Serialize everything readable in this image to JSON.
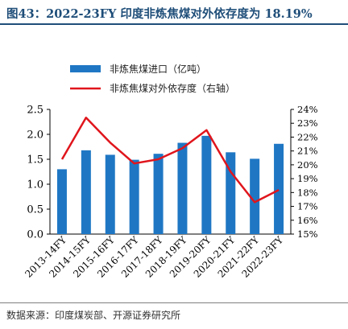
{
  "title": "图43：2022-23FY 印度非炼焦煤对外依存度为 18.19%",
  "source": "数据来源：印度煤炭部、开源证券研究所",
  "chart_data": {
    "type": "bar+line",
    "categories": [
      "2013-14FY",
      "2014-15FY",
      "2015-16FY",
      "2016-17FY",
      "2017-18FY",
      "2018-19FY",
      "2019-20FY",
      "2020-21FY",
      "2021-22FY",
      "2022-23FY"
    ],
    "series": [
      {
        "name": "非炼焦煤进口（亿吨）",
        "type": "bar",
        "axis": "left",
        "color": "#1f77c4",
        "values": [
          1.3,
          1.68,
          1.59,
          1.49,
          1.61,
          1.83,
          1.97,
          1.64,
          1.51,
          1.81
        ]
      },
      {
        "name": "非炼焦煤对外依存度（右轴）",
        "type": "line",
        "axis": "right",
        "color": "#e0151c",
        "values": [
          20.4,
          23.4,
          21.6,
          20.1,
          20.4,
          21.2,
          22.5,
          19.5,
          17.3,
          18.19
        ]
      }
    ],
    "y_left": {
      "min": 0,
      "max": 2.5,
      "ticks": [
        "0.0",
        "0.5",
        "1.0",
        "1.5",
        "2.0",
        "2.5"
      ]
    },
    "y_right": {
      "min": 15,
      "max": 24,
      "ticks": [
        "15%",
        "16%",
        "17%",
        "18%",
        "19%",
        "20%",
        "21%",
        "22%",
        "23%",
        "24%"
      ]
    },
    "grid": false,
    "legend_position": "top-left"
  }
}
